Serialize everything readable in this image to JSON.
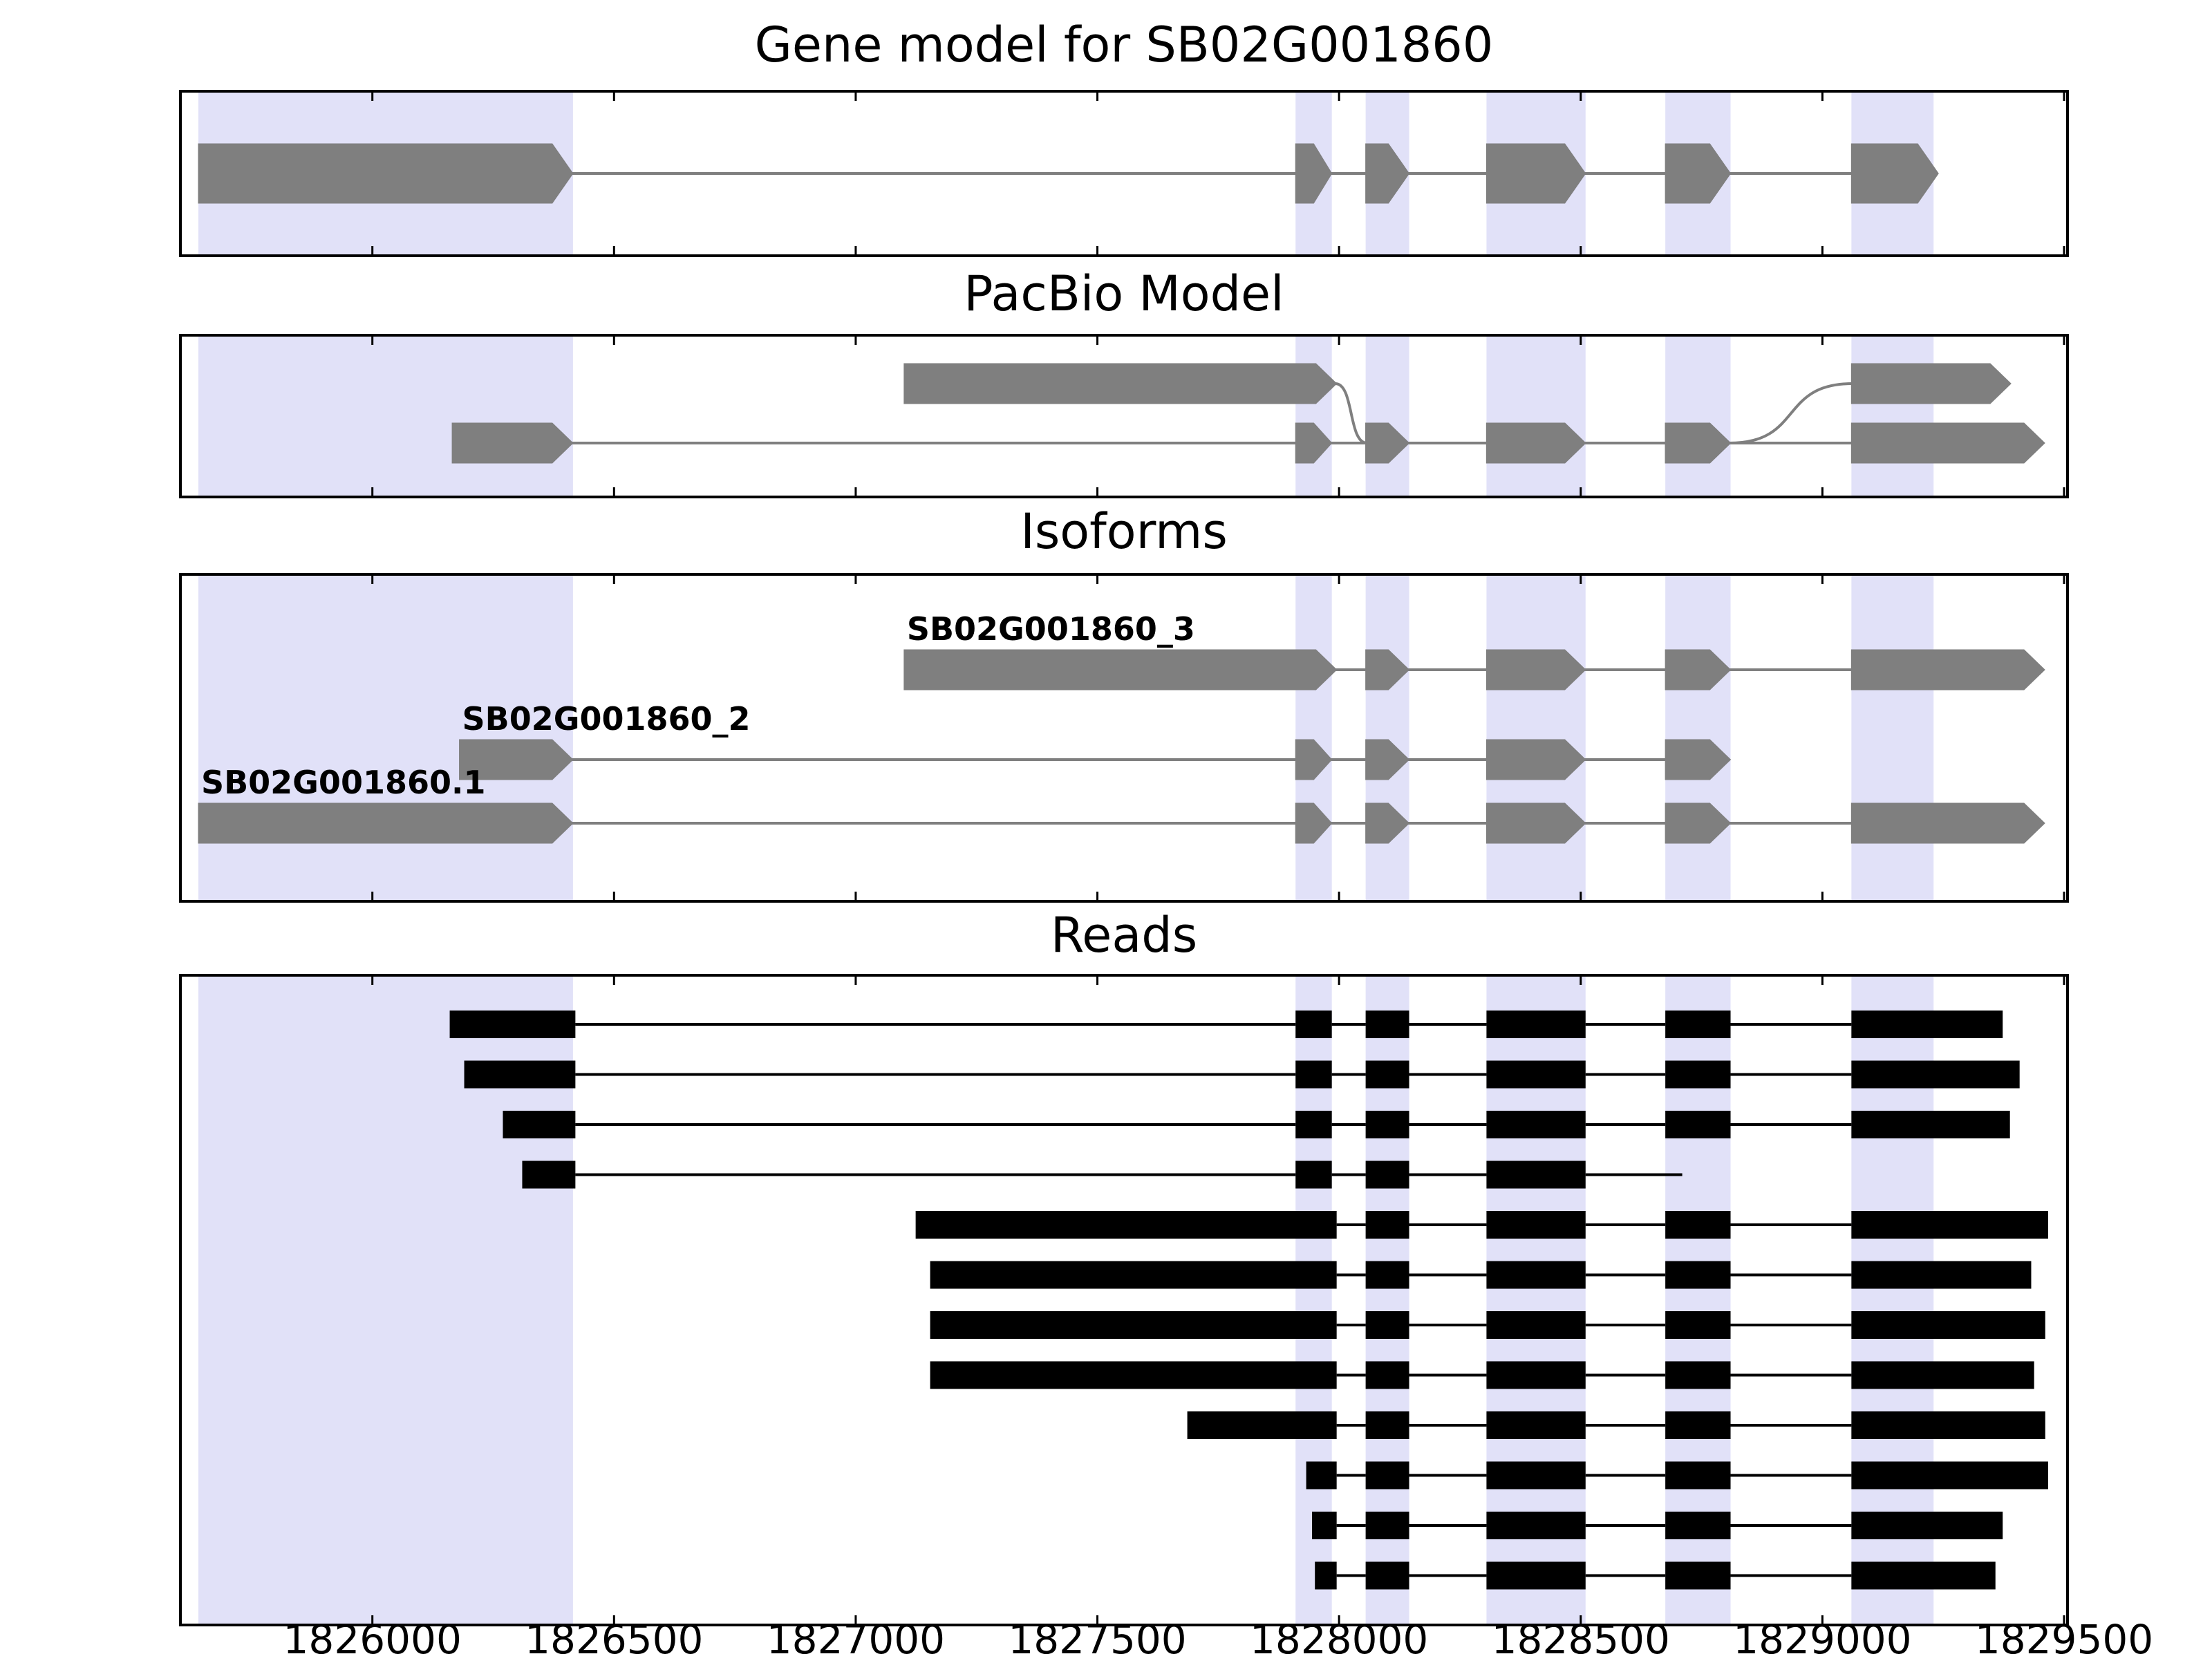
{
  "chart_data": {
    "type": "gene-structure-tracks",
    "gene_id": "SB02G001860",
    "xlim": [
      1825600,
      1829510
    ],
    "xticks": [
      1826000,
      1826500,
      1827000,
      1827500,
      1828000,
      1828500,
      1829000,
      1829500
    ],
    "xtick_labels": [
      "1826000",
      "1826500",
      "1827000",
      "1827500",
      "1828000",
      "1828500",
      "1829000",
      "1829500"
    ],
    "highlight_color": "#e1e1f8",
    "feature_color": "#7f7f7f",
    "read_color": "#000000",
    "border_color": "#000000",
    "highlight_regions": [
      [
        1825640,
        1826415
      ],
      [
        1827910,
        1827985
      ],
      [
        1828055,
        1828145
      ],
      [
        1828305,
        1828510
      ],
      [
        1828675,
        1828810
      ],
      [
        1829060,
        1829230
      ]
    ],
    "panels": [
      {
        "id": "gene",
        "title": "Gene model for SB02G001860",
        "transcripts": [
          {
            "name": "SB02G001860",
            "strand": "+",
            "exons": [
              [
                1825640,
                1826415
              ],
              [
                1827910,
                1827985
              ],
              [
                1828055,
                1828145
              ],
              [
                1828305,
                1828510
              ],
              [
                1828675,
                1828810
              ],
              [
                1829060,
                1829240
              ]
            ]
          }
        ]
      },
      {
        "id": "pacbio",
        "title": "PacBio Model",
        "transcripts": [
          {
            "name": "pacbio-model-2",
            "strand": "+",
            "row": 1,
            "exons": [
              [
                1826165,
                1826415
              ],
              [
                1827910,
                1827985
              ],
              [
                1828055,
                1828145
              ],
              [
                1828305,
                1828510
              ],
              [
                1828675,
                1828810
              ],
              [
                1829060,
                1829460
              ]
            ]
          },
          {
            "name": "pacbio-model-1",
            "strand": "+",
            "row": 0,
            "exons": [
              [
                1827100,
                1827995,
                0
              ],
              [
                1828055,
                1828145,
                1
              ],
              [
                1828305,
                1828510,
                1
              ],
              [
                1828675,
                1828810,
                1
              ],
              [
                1829060,
                1829390,
                0
              ]
            ]
          }
        ]
      },
      {
        "id": "isoforms",
        "title": "Isoforms",
        "transcripts": [
          {
            "name": "SB02G001860_3",
            "label": "SB02G001860_3",
            "strand": "+",
            "row": 0,
            "exons": [
              [
                1827100,
                1827995
              ],
              [
                1828055,
                1828145
              ],
              [
                1828305,
                1828510
              ],
              [
                1828675,
                1828810
              ],
              [
                1829060,
                1829460
              ]
            ]
          },
          {
            "name": "SB02G001860_2",
            "label": "SB02G001860_2",
            "strand": "+",
            "row": 1,
            "exons": [
              [
                1826180,
                1826415
              ],
              [
                1827910,
                1827985
              ],
              [
                1828055,
                1828145
              ],
              [
                1828305,
                1828510
              ],
              [
                1828675,
                1828810
              ]
            ]
          },
          {
            "name": "SB02G001860.1",
            "label": "SB02G001860.1",
            "strand": "+",
            "row": 2,
            "exons": [
              [
                1825640,
                1826415
              ],
              [
                1827910,
                1827985
              ],
              [
                1828055,
                1828145
              ],
              [
                1828305,
                1828510
              ],
              [
                1828675,
                1828810
              ],
              [
                1829060,
                1829460
              ]
            ]
          }
        ]
      },
      {
        "id": "reads",
        "title": "Reads",
        "reads": [
          {
            "exons": [
              [
                1826160,
                1826420
              ],
              [
                1827910,
                1827985
              ],
              [
                1828055,
                1828145
              ],
              [
                1828305,
                1828510
              ],
              [
                1828675,
                1828810
              ],
              [
                1829060,
                1829373
              ]
            ]
          },
          {
            "exons": [
              [
                1826190,
                1826420
              ],
              [
                1827910,
                1827985
              ],
              [
                1828055,
                1828145
              ],
              [
                1828305,
                1828510
              ],
              [
                1828675,
                1828810
              ],
              [
                1829060,
                1829408
              ]
            ]
          },
          {
            "exons": [
              [
                1826270,
                1826420
              ],
              [
                1827910,
                1827985
              ],
              [
                1828055,
                1828145
              ],
              [
                1828305,
                1828510
              ],
              [
                1828675,
                1828810
              ],
              [
                1829060,
                1829388
              ]
            ]
          },
          {
            "exons": [
              [
                1826310,
                1826420
              ],
              [
                1827910,
                1827985
              ],
              [
                1828055,
                1828145
              ],
              [
                1828305,
                1828510
              ]
            ],
            "tail": 1828710
          },
          {
            "exons": [
              [
                1827124,
                1827995
              ],
              [
                1828055,
                1828145
              ],
              [
                1828305,
                1828510
              ],
              [
                1828675,
                1828810
              ],
              [
                1829060,
                1829467
              ]
            ]
          },
          {
            "exons": [
              [
                1827154,
                1827995
              ],
              [
                1828055,
                1828145
              ],
              [
                1828305,
                1828510
              ],
              [
                1828675,
                1828810
              ],
              [
                1829060,
                1829432
              ]
            ]
          },
          {
            "exons": [
              [
                1827154,
                1827995
              ],
              [
                1828055,
                1828145
              ],
              [
                1828305,
                1828510
              ],
              [
                1828675,
                1828810
              ],
              [
                1829060,
                1829461
              ]
            ]
          },
          {
            "exons": [
              [
                1827154,
                1827995
              ],
              [
                1828055,
                1828145
              ],
              [
                1828305,
                1828510
              ],
              [
                1828675,
                1828810
              ],
              [
                1829060,
                1829438
              ]
            ]
          },
          {
            "exons": [
              [
                1827686,
                1827995
              ],
              [
                1828055,
                1828145
              ],
              [
                1828305,
                1828510
              ],
              [
                1828675,
                1828810
              ],
              [
                1829060,
                1829461
              ]
            ]
          },
          {
            "exons": [
              [
                1827932,
                1827995
              ],
              [
                1828055,
                1828145
              ],
              [
                1828305,
                1828510
              ],
              [
                1828675,
                1828810
              ],
              [
                1829060,
                1829467
              ]
            ]
          },
          {
            "exons": [
              [
                1827944,
                1827995
              ],
              [
                1828055,
                1828145
              ],
              [
                1828305,
                1828510
              ],
              [
                1828675,
                1828810
              ],
              [
                1829060,
                1829373
              ]
            ]
          },
          {
            "exons": [
              [
                1827950,
                1827995
              ],
              [
                1828055,
                1828145
              ],
              [
                1828305,
                1828510
              ],
              [
                1828675,
                1828810
              ],
              [
                1829060,
                1829358
              ]
            ]
          }
        ]
      }
    ]
  }
}
